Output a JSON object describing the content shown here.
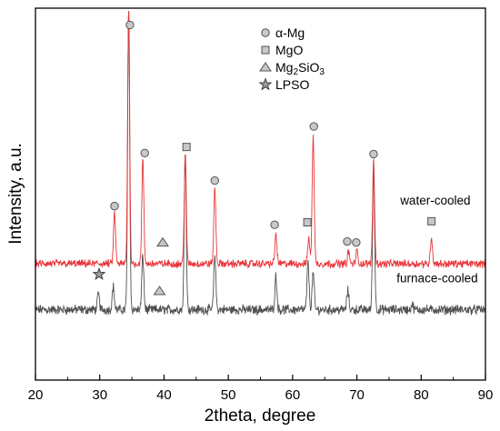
{
  "chart_data": {
    "type": "line",
    "xlabel": "2theta, degree",
    "ylabel": "Intensity, a.u.",
    "xlim": [
      20,
      90
    ],
    "ylim": [
      0,
      100
    ],
    "xticks": [
      20,
      30,
      40,
      50,
      60,
      70,
      80,
      90
    ],
    "xtick_labels": [
      "20",
      "30",
      "40",
      "50",
      "60",
      "70",
      "80",
      "90"
    ],
    "yticks": "none",
    "grid": false,
    "legend_position": "top-center",
    "legend": [
      {
        "symbol": "circle",
        "label": "α-Mg"
      },
      {
        "symbol": "square",
        "label": "MgO"
      },
      {
        "symbol": "triangle",
        "label": "Mg",
        "subscript1": "2",
        "mid": "SiO",
        "subscript2": "3"
      },
      {
        "symbol": "star",
        "label": "LPSO"
      }
    ],
    "series": [
      {
        "name": "water-cooled",
        "color": "#e8363a",
        "baseline": 27.5,
        "noise": 0.9,
        "peaks": [
          {
            "x": 32.3,
            "y": 42
          },
          {
            "x": 34.5,
            "y": 100
          },
          {
            "x": 36.7,
            "y": 57
          },
          {
            "x": 43.3,
            "y": 59
          },
          {
            "x": 47.9,
            "y": 49
          },
          {
            "x": 57.4,
            "y": 36
          },
          {
            "x": 62.5,
            "y": 35
          },
          {
            "x": 63.2,
            "y": 64
          },
          {
            "x": 68.7,
            "y": 31
          },
          {
            "x": 70.0,
            "y": 31
          },
          {
            "x": 72.6,
            "y": 57
          },
          {
            "x": 81.6,
            "y": 35
          }
        ]
      },
      {
        "name": "furnace-cooled",
        "color": "#505050",
        "baseline": 14.5,
        "noise": 1.1,
        "peaks": [
          {
            "x": 29.8,
            "y": 19
          },
          {
            "x": 32.1,
            "y": 21
          },
          {
            "x": 34.5,
            "y": 100
          },
          {
            "x": 36.7,
            "y": 30
          },
          {
            "x": 43.3,
            "y": 59
          },
          {
            "x": 47.9,
            "y": 30
          },
          {
            "x": 57.4,
            "y": 24
          },
          {
            "x": 62.4,
            "y": 28
          },
          {
            "x": 63.2,
            "y": 25
          },
          {
            "x": 68.6,
            "y": 20
          },
          {
            "x": 72.6,
            "y": 55
          },
          {
            "x": 78.6,
            "y": 16
          }
        ]
      }
    ],
    "markers": [
      {
        "symbol": "circle",
        "x": 32.3,
        "y": 43.8
      },
      {
        "symbol": "circle",
        "x": 34.7,
        "y": 95
      },
      {
        "symbol": "circle",
        "x": 37.0,
        "y": 58.8
      },
      {
        "symbol": "square",
        "x": 43.5,
        "y": 60.5
      },
      {
        "symbol": "circle",
        "x": 47.9,
        "y": 51
      },
      {
        "symbol": "circle",
        "x": 57.2,
        "y": 38.5
      },
      {
        "symbol": "square",
        "x": 62.3,
        "y": 39.2
      },
      {
        "symbol": "circle",
        "x": 63.3,
        "y": 66.3
      },
      {
        "symbol": "circle",
        "x": 68.5,
        "y": 33.8
      },
      {
        "symbol": "circle",
        "x": 69.9,
        "y": 33.5
      },
      {
        "symbol": "circle",
        "x": 72.6,
        "y": 58.5
      },
      {
        "symbol": "square",
        "x": 81.6,
        "y": 39.5
      },
      {
        "symbol": "triangle",
        "x": 39.8,
        "y": 33.5
      },
      {
        "symbol": "triangle",
        "x": 39.3,
        "y": 19.8
      },
      {
        "symbol": "star",
        "x": 29.9,
        "y": 24.5
      }
    ],
    "annotations": [
      {
        "text": "water-cooled",
        "x": 82.2,
        "y": 44.2
      },
      {
        "text": "furnace-cooled",
        "x": 82.5,
        "y": 22.2
      }
    ]
  }
}
